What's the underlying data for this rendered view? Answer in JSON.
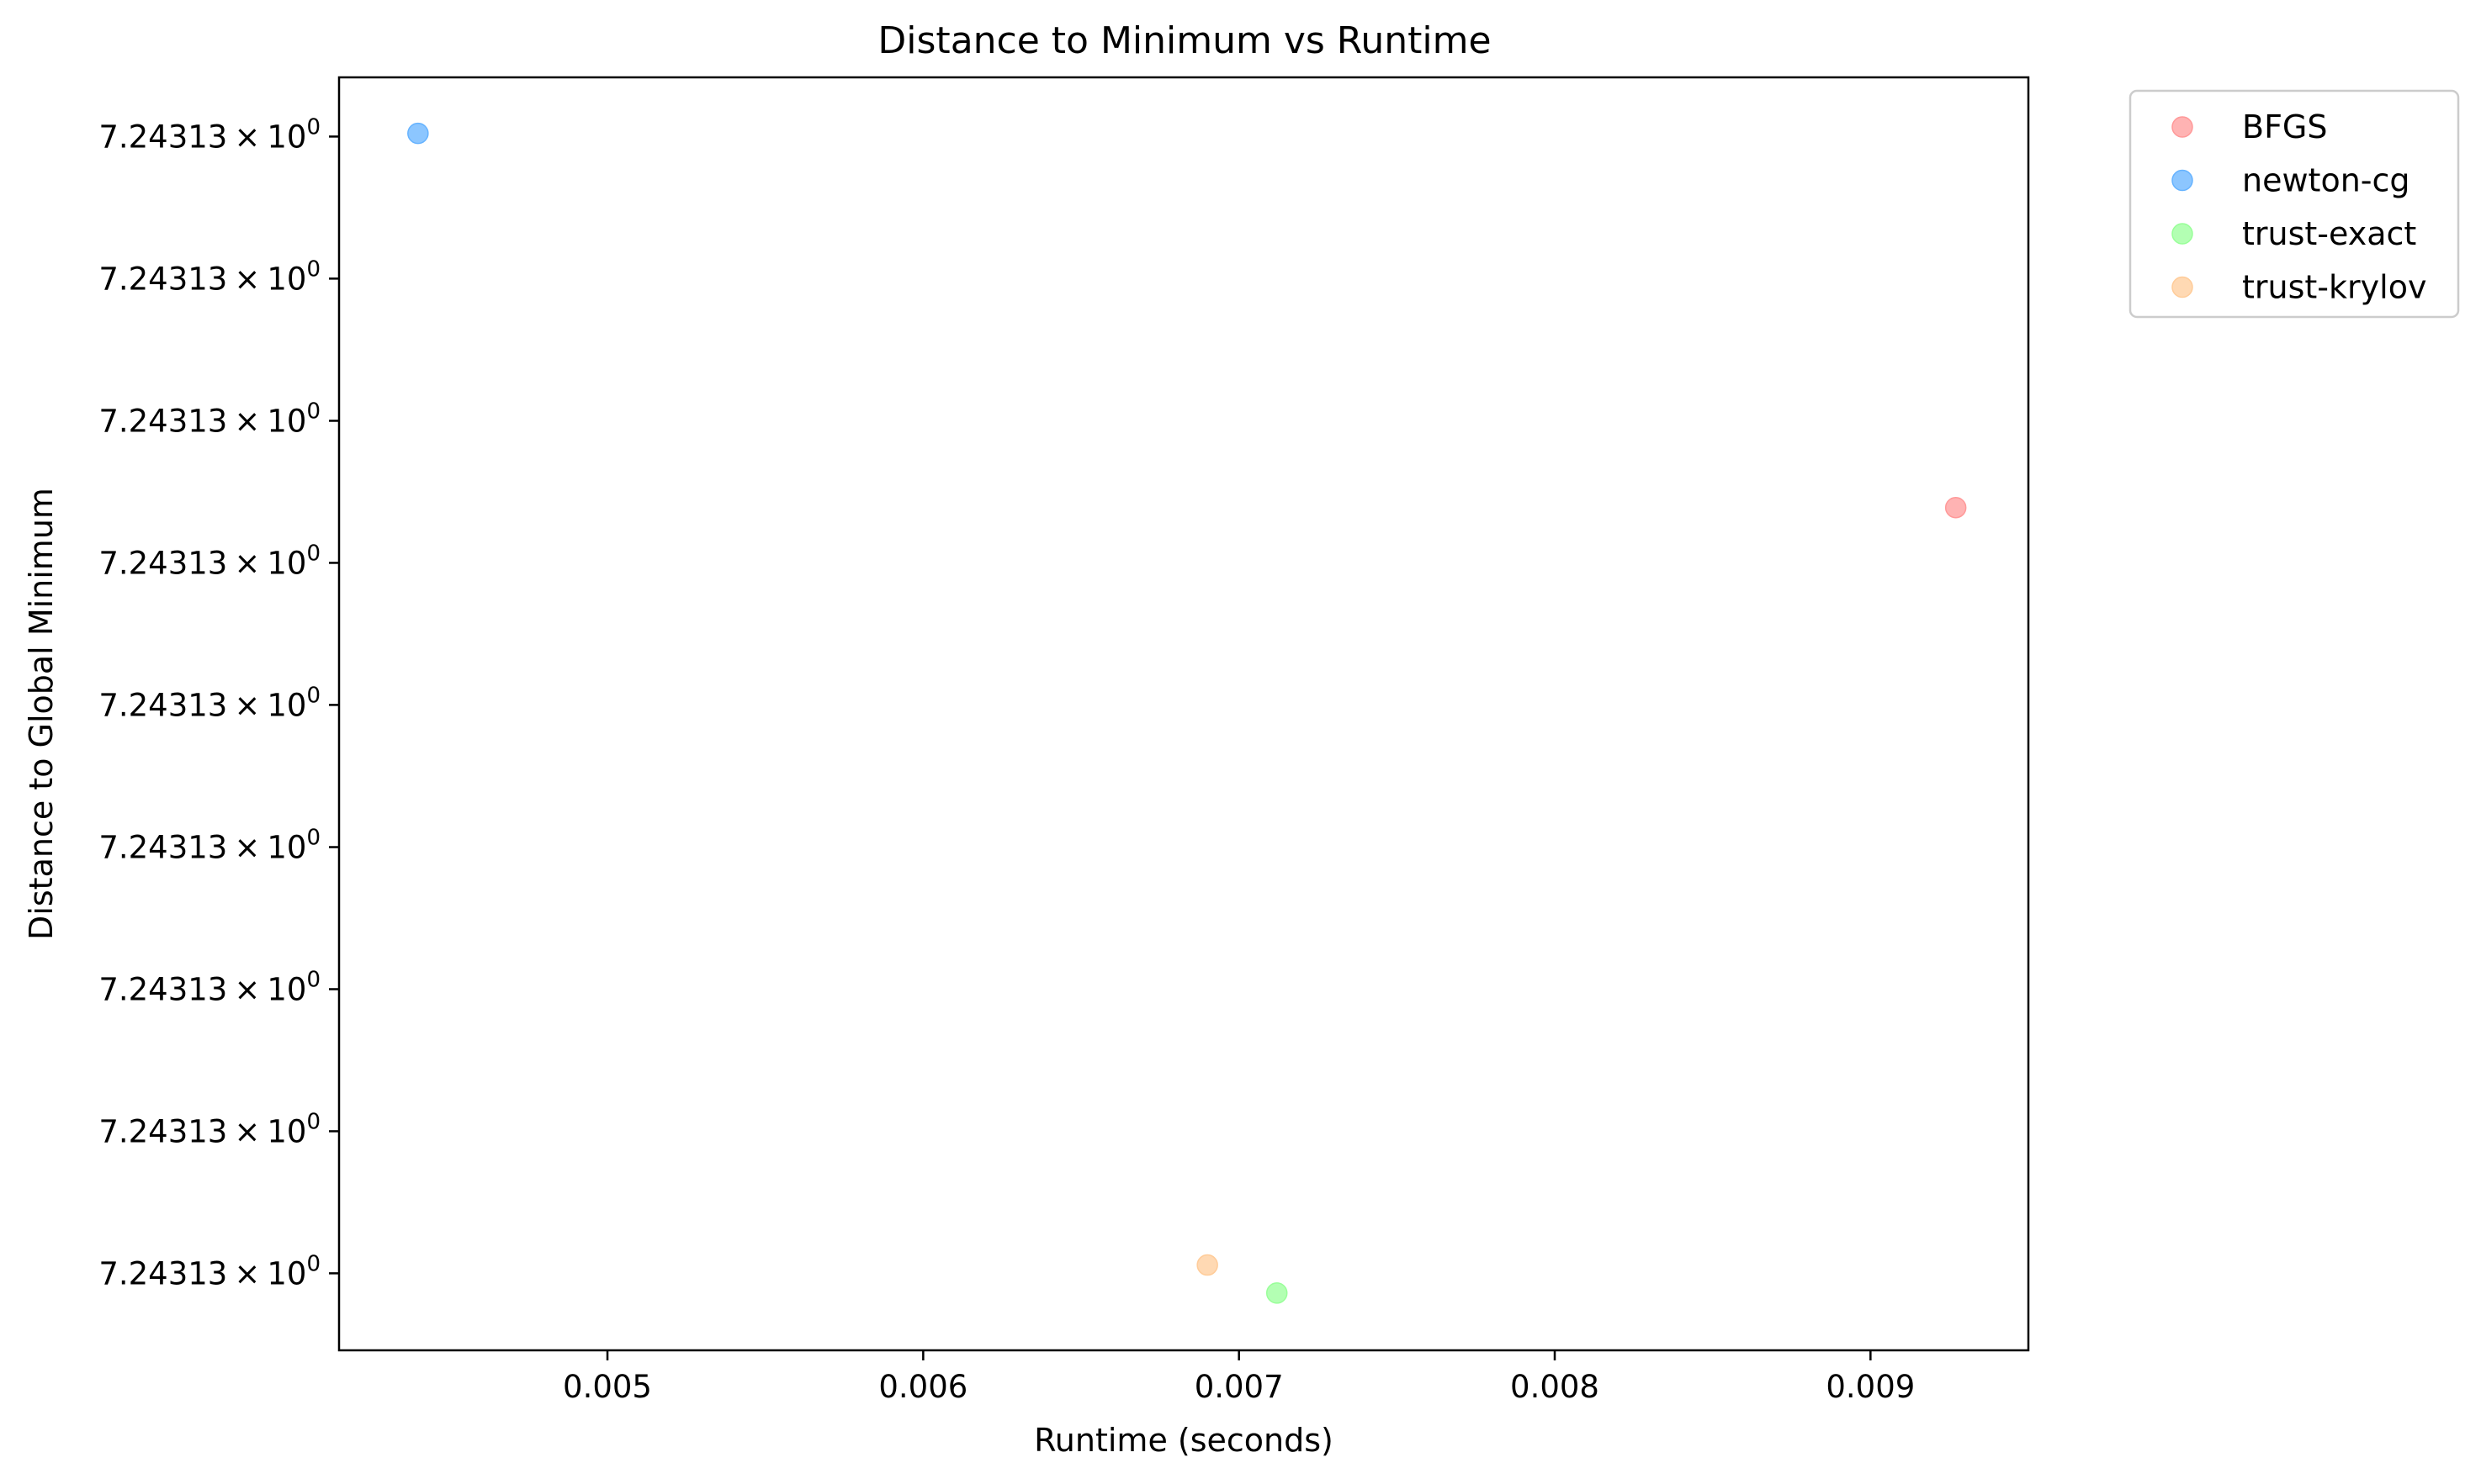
{
  "chart_data": {
    "type": "scatter",
    "title": "Distance to Minimum vs Runtime",
    "xlabel": "Runtime (seconds)",
    "ylabel": "Distance to Global Minimum",
    "xlim": [
      0.00415,
      0.0095
    ],
    "x_ticks": [
      {
        "value": 0.005,
        "label": "0.005"
      },
      {
        "value": 0.006,
        "label": "0.006"
      },
      {
        "value": 0.007,
        "label": "0.007"
      },
      {
        "value": 0.008,
        "label": "0.008"
      },
      {
        "value": 0.009,
        "label": "0.009"
      }
    ],
    "ylim": [
      0,
      1
    ],
    "y_ticks": [
      {
        "value": 0.9535,
        "mantissa": "7.24313",
        "times": "×",
        "base": "10",
        "exp": "0"
      },
      {
        "value": 0.8419,
        "mantissa": "7.24313",
        "times": "×",
        "base": "10",
        "exp": "0"
      },
      {
        "value": 0.7302,
        "mantissa": "7.24313",
        "times": "×",
        "base": "10",
        "exp": "0"
      },
      {
        "value": 0.6186,
        "mantissa": "7.24313",
        "times": "×",
        "base": "10",
        "exp": "0"
      },
      {
        "value": 0.507,
        "mantissa": "7.24313",
        "times": "×",
        "base": "10",
        "exp": "0"
      },
      {
        "value": 0.3953,
        "mantissa": "7.24313",
        "times": "×",
        "base": "10",
        "exp": "0"
      },
      {
        "value": 0.2837,
        "mantissa": "7.24313",
        "times": "×",
        "base": "10",
        "exp": "0"
      },
      {
        "value": 0.1721,
        "mantissa": "7.24313",
        "times": "×",
        "base": "10",
        "exp": "0"
      },
      {
        "value": 0.0605,
        "mantissa": "7.24313",
        "times": "×",
        "base": "10",
        "exp": "0"
      }
    ],
    "grid": false,
    "legend_position": "outside-top-right",
    "series": [
      {
        "name": "BFGS",
        "color": "#ff9999",
        "points": [
          {
            "x": 0.00927,
            "y": 0.662
          }
        ]
      },
      {
        "name": "newton-cg",
        "color": "#66b3ff",
        "points": [
          {
            "x": 0.0044,
            "y": 0.956
          }
        ]
      },
      {
        "name": "trust-exact",
        "color": "#99ff99",
        "points": [
          {
            "x": 0.00712,
            "y": 0.045
          }
        ]
      },
      {
        "name": "trust-krylov",
        "color": "#ffcc99",
        "points": [
          {
            "x": 0.0069,
            "y": 0.067
          }
        ]
      }
    ]
  }
}
